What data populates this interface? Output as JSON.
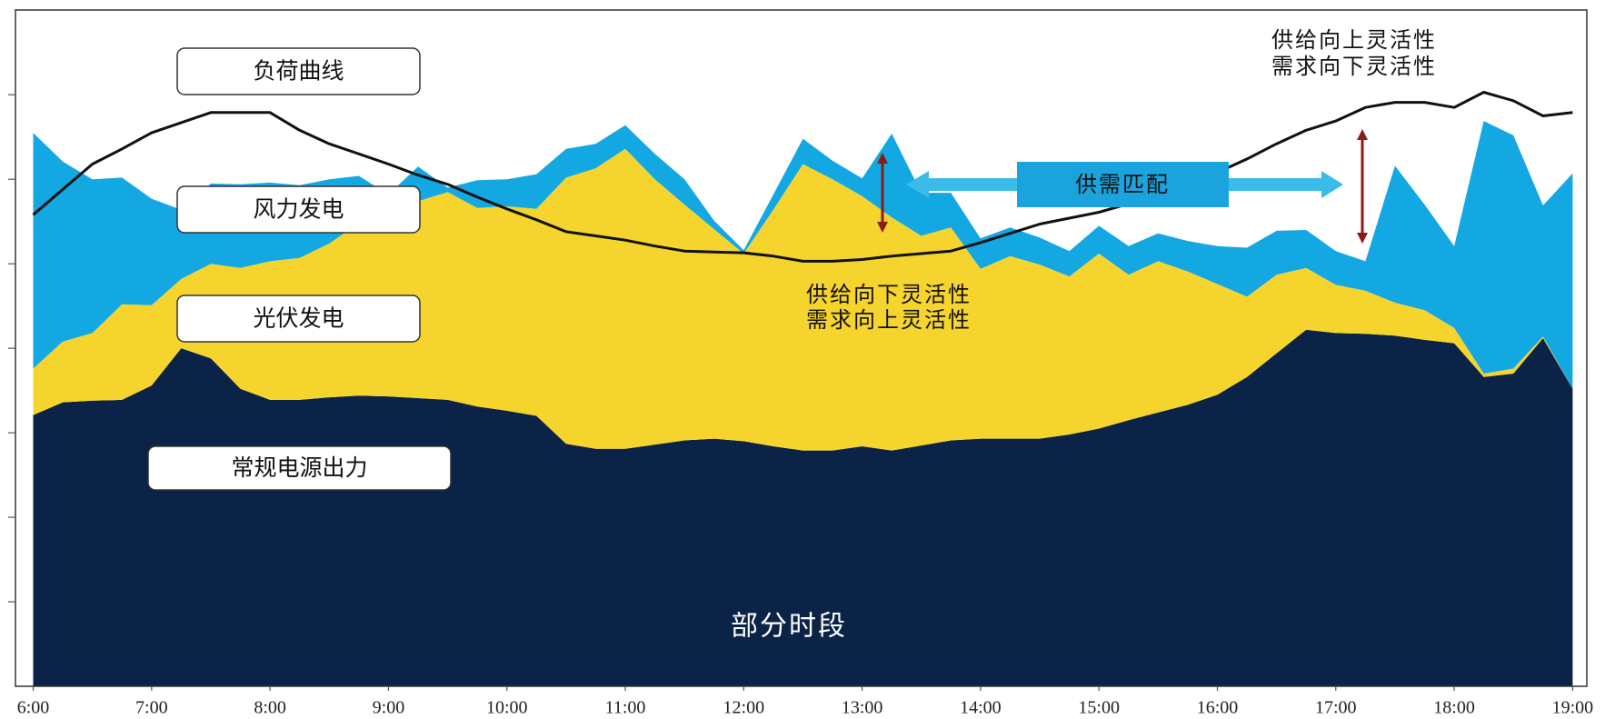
{
  "chart_data": {
    "type": "area",
    "x": [
      6,
      6.25,
      6.5,
      6.75,
      7,
      7.25,
      7.5,
      7.75,
      8,
      8.25,
      8.5,
      8.75,
      9,
      9.25,
      9.5,
      9.75,
      10,
      10.25,
      10.5,
      10.75,
      11,
      11.25,
      11.5,
      11.75,
      12,
      12.25,
      12.5,
      12.75,
      13,
      13.25,
      13.5,
      13.75,
      14,
      14.25,
      14.5,
      14.75,
      15,
      15.25,
      15.5,
      15.75,
      16,
      16.25,
      16.5,
      16.75,
      17,
      17.25,
      17.5,
      17.75,
      18,
      18.25,
      18.5,
      18.75,
      19
    ],
    "xlim": [
      5.85,
      19.12
    ],
    "xticks": [
      {
        "value": 6,
        "label": "6:00"
      },
      {
        "value": 7,
        "label": "7:00"
      },
      {
        "value": 8,
        "label": "8:00"
      },
      {
        "value": 9,
        "label": "9:00"
      },
      {
        "value": 10,
        "label": "10:00"
      },
      {
        "value": 11,
        "label": "11:00"
      },
      {
        "value": 12,
        "label": "12:00"
      },
      {
        "value": 13,
        "label": "13:00"
      },
      {
        "value": 14,
        "label": "14:00"
      },
      {
        "value": 15,
        "label": "15:00"
      },
      {
        "value": 16,
        "label": "16:00"
      },
      {
        "value": 17,
        "label": "17:00"
      },
      {
        "value": 18,
        "label": "18:00"
      },
      {
        "value": 19,
        "label": "19:00"
      }
    ],
    "ylim": [
      0,
      8
    ],
    "yticks": [
      1,
      2,
      3,
      4,
      5,
      6,
      7
    ],
    "series": [
      {
        "name": "常规电源出力",
        "type": "area",
        "color": "#0b2347",
        "values": [
          3.21,
          3.36,
          3.38,
          3.39,
          3.56,
          4.0,
          3.88,
          3.52,
          3.39,
          3.39,
          3.42,
          3.44,
          3.43,
          3.41,
          3.39,
          3.31,
          3.26,
          3.2,
          2.87,
          2.81,
          2.81,
          2.86,
          2.91,
          2.93,
          2.9,
          2.84,
          2.79,
          2.79,
          2.84,
          2.79,
          2.85,
          2.91,
          2.93,
          2.93,
          2.93,
          2.98,
          3.05,
          3.15,
          3.24,
          3.33,
          3.45,
          3.66,
          3.94,
          4.22,
          4.18,
          4.17,
          4.15,
          4.1,
          4.06,
          3.66,
          3.7,
          4.12,
          3.52
        ]
      },
      {
        "name": "光伏发电",
        "type": "area",
        "color": "#f6d42e",
        "values": [
          0.55,
          0.72,
          0.8,
          1.13,
          0.95,
          0.82,
          1.12,
          1.43,
          1.64,
          1.68,
          1.82,
          2.04,
          2.15,
          2.33,
          2.46,
          2.35,
          2.42,
          2.45,
          3.15,
          3.32,
          3.55,
          3.14,
          2.79,
          2.48,
          2.22,
          2.8,
          3.39,
          3.21,
          2.96,
          2.76,
          2.48,
          2.52,
          2.01,
          2.16,
          2.06,
          1.87,
          2.07,
          1.72,
          1.79,
          1.58,
          1.31,
          0.95,
          0.93,
          0.73,
          0.57,
          0.51,
          0.39,
          0.35,
          0.18,
          0.04,
          0.06,
          0.02,
          0
        ]
      },
      {
        "name": "风力发电",
        "type": "area",
        "color": "#14a8e2",
        "values": [
          2.79,
          2.13,
          1.82,
          1.5,
          1.26,
          0.82,
          0.95,
          0.99,
          0.93,
          0.86,
          0.76,
          0.56,
          0.24,
          0.41,
          0.05,
          0.33,
          0.32,
          0.41,
          0.34,
          0.29,
          0.28,
          0.3,
          0.3,
          0.1,
          0.04,
          0.18,
          0.3,
          0.22,
          0.21,
          0.99,
          0.51,
          0.41,
          0.36,
          0.34,
          0.32,
          0.3,
          0.33,
          0.34,
          0.33,
          0.36,
          0.45,
          0.58,
          0.52,
          0.45,
          0.4,
          0.35,
          1.62,
          1.25,
          0.97,
          2.99,
          2.76,
          1.55,
          2.55
        ]
      },
      {
        "name": "负荷曲线",
        "type": "line",
        "color": "#111111",
        "values": [
          5.58,
          5.88,
          6.18,
          6.36,
          6.55,
          6.67,
          6.79,
          6.79,
          6.79,
          6.58,
          6.42,
          6.3,
          6.18,
          6.05,
          5.94,
          5.79,
          5.65,
          5.52,
          5.38,
          5.33,
          5.28,
          5.21,
          5.15,
          5.14,
          5.13,
          5.09,
          5.03,
          5.03,
          5.05,
          5.09,
          5.12,
          5.15,
          5.25,
          5.36,
          5.47,
          5.54,
          5.61,
          5.71,
          5.84,
          5.98,
          6.08,
          6.24,
          6.42,
          6.58,
          6.69,
          6.85,
          6.91,
          6.91,
          6.85,
          7.03,
          6.93,
          6.75,
          6.79
        ]
      }
    ],
    "annotations": [
      "供给向上灵活性",
      "需求向下灵活性",
      "供给向下灵活性",
      "需求向上灵活性",
      "供需匹配",
      "部分时段"
    ]
  }
}
